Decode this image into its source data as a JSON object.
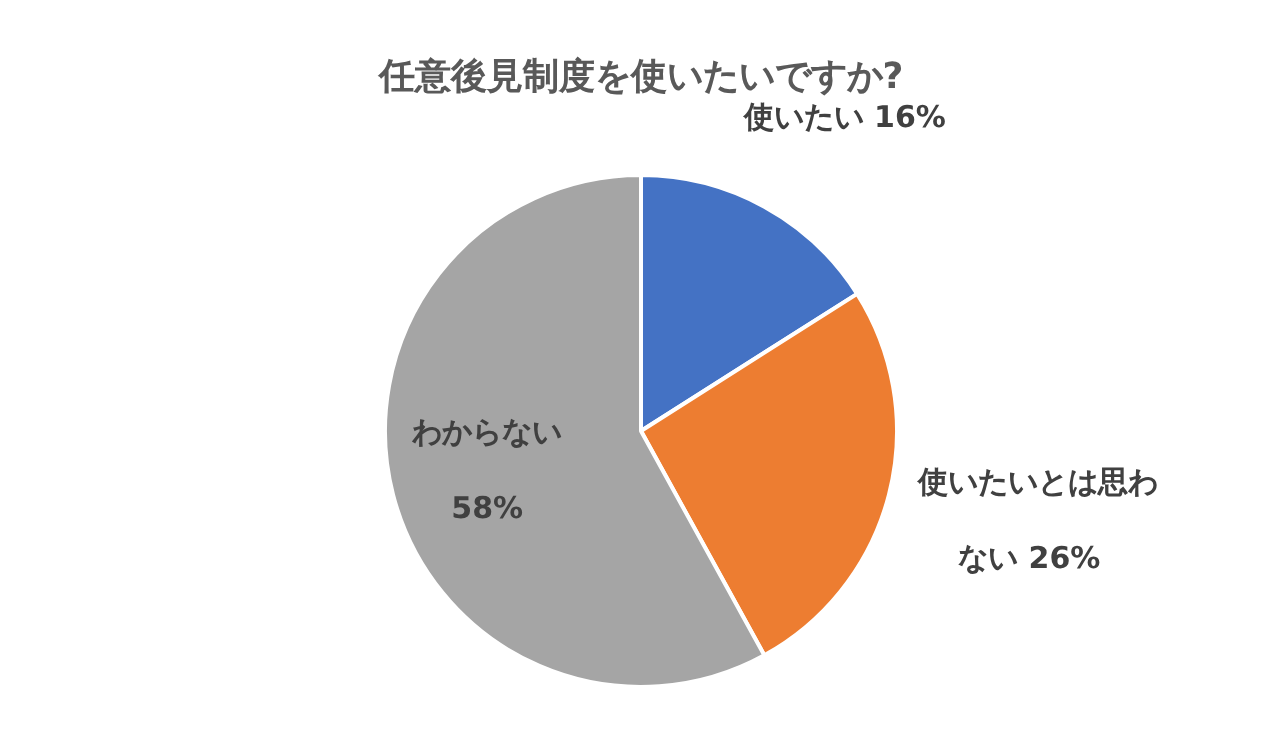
{
  "chart_data": {
    "type": "pie",
    "title": "任意後見制度を使いたいですか?",
    "categories": [
      "使いたい",
      "使いたいとは思わない",
      "わからない"
    ],
    "values": [
      16,
      26,
      58
    ],
    "value_labels": [
      "16%",
      "26%",
      "58%"
    ],
    "colors": [
      "#4472c4",
      "#ed7d31",
      "#a5a5a5"
    ]
  }
}
